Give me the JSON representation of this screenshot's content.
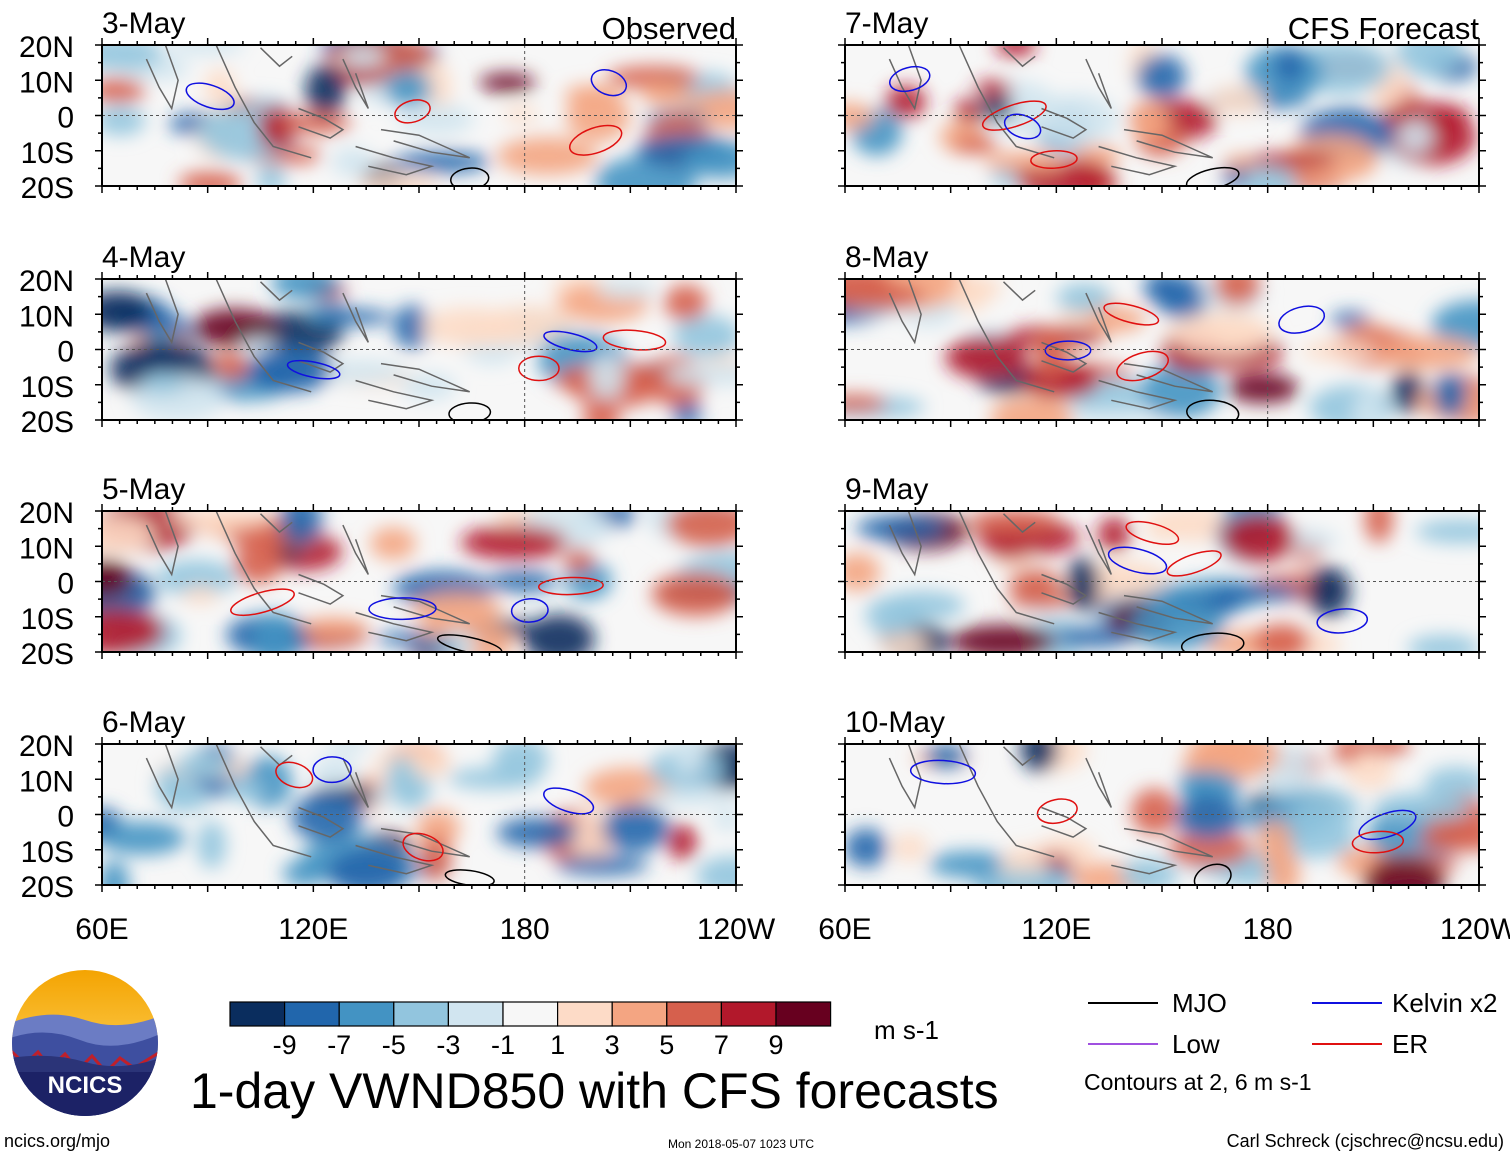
{
  "title": "1-day VWND850 with CFS forecasts",
  "units": "m s-1",
  "contour_note": "Contours at 2, 6 m s-1",
  "footer": {
    "url": "ncics.org/mjo",
    "timestamp": "Mon 2018-05-07 1023 UTC",
    "credit": "Carl Schreck (cjschrec@ncsu.edu)"
  },
  "logo_text": "NCICS",
  "legend": [
    {
      "label": "MJO",
      "color": "#000000"
    },
    {
      "label": "Kelvin x2",
      "color": "#1010e0"
    },
    {
      "label": "Low",
      "color": "#a050e0"
    },
    {
      "label": "ER",
      "color": "#e01010"
    }
  ],
  "colorbar": {
    "colors": [
      "#0a2d5e",
      "#2166ac",
      "#4393c3",
      "#92c5de",
      "#d1e5f0",
      "#f7f7f7",
      "#fddbc7",
      "#f4a582",
      "#d6604d",
      "#b2182b",
      "#67001f"
    ],
    "tick_labels": [
      "-9",
      "-7",
      "-5",
      "-3",
      "-1",
      "1",
      "3",
      "5",
      "7",
      "9"
    ]
  },
  "column_titles": [
    "Observed",
    "CFS Forecast"
  ],
  "chart_data": {
    "type": "heatmap",
    "variable": "850-hPa meridional wind (VWND850)",
    "x_axis": {
      "range": [
        "60E",
        "120W"
      ],
      "ticks": [
        "60E",
        "120E",
        "180",
        "120W"
      ]
    },
    "y_axis": {
      "range": [
        "20S",
        "20N"
      ],
      "ticks": [
        "20N",
        "10N",
        "0",
        "10S",
        "20S"
      ]
    },
    "panels": [
      {
        "date": "3-May",
        "source": "Observed",
        "column": 0,
        "row": 0
      },
      {
        "date": "4-May",
        "source": "Observed",
        "column": 0,
        "row": 1
      },
      {
        "date": "5-May",
        "source": "Observed",
        "column": 0,
        "row": 2
      },
      {
        "date": "6-May",
        "source": "Observed",
        "column": 0,
        "row": 3
      },
      {
        "date": "7-May",
        "source": "CFS Forecast",
        "column": 1,
        "row": 0
      },
      {
        "date": "8-May",
        "source": "CFS Forecast",
        "column": 1,
        "row": 1
      },
      {
        "date": "9-May",
        "source": "CFS Forecast",
        "column": 1,
        "row": 2
      },
      {
        "date": "10-May",
        "source": "CFS Forecast",
        "column": 1,
        "row": 3
      }
    ]
  }
}
